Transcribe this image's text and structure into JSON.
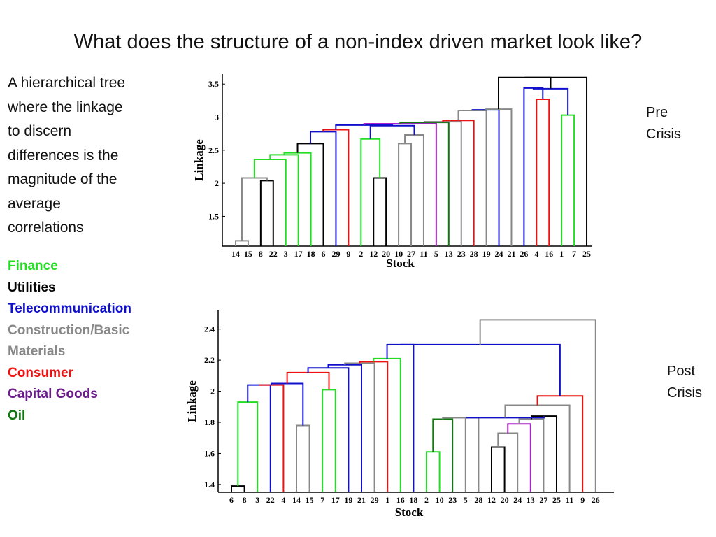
{
  "title": "What does the structure of a non-index driven market look like?",
  "description": [
    "A hierarchical tree",
    "where the linkage",
    "to discern",
    "differences is the",
    "magnitude of the",
    "average",
    "correlations"
  ],
  "legend": [
    {
      "label": "Finance",
      "color": "#22dd22"
    },
    {
      "label": "Utilities",
      "color": "#000000"
    },
    {
      "label": "Telecommunication",
      "color": "#1010cc"
    },
    {
      "label": "Construction/Basic",
      "color": "#888888"
    },
    {
      "label": "Materials",
      "color": "#888888"
    },
    {
      "label": "Consumer",
      "color": "#ee1111"
    },
    {
      "label": "Capital Goods",
      "color": "#6a1a8a"
    },
    {
      "label": "Oil",
      "color": "#117711"
    }
  ],
  "labels": {
    "pre": [
      "Pre",
      "Crisis"
    ],
    "post": [
      "Post",
      "Crisis"
    ]
  },
  "chart_data": [
    {
      "type": "dendrogram",
      "xlabel": "Stock",
      "ylabel": "Linkage",
      "ylim": [
        1.05,
        3.65
      ],
      "yticks": [
        "1.5",
        "2",
        "2.5",
        "3",
        "3.5"
      ],
      "leaves": [
        "14",
        "15",
        "8",
        "22",
        "3",
        "17",
        "18",
        "6",
        "29",
        "9",
        "2",
        "12",
        "20",
        "10",
        "27",
        "11",
        "5",
        "13",
        "23",
        "28",
        "19",
        "24",
        "21",
        "26",
        "4",
        "16",
        "1",
        "7",
        "25"
      ],
      "merges": [
        {
          "a": 0,
          "b": 1,
          "h": 1.13,
          "color": "#888888"
        },
        {
          "a": 2,
          "b": 3,
          "h": 2.04,
          "color": "#000000"
        },
        {
          "a": 29,
          "b": 30,
          "h": 2.08,
          "color": "#888888"
        },
        {
          "a": 4,
          "b": 31,
          "h": 2.36,
          "color": "#22dd22"
        },
        {
          "a": 5,
          "b": 32,
          "h": 2.43,
          "color": "#22dd22"
        },
        {
          "a": 6,
          "b": 33,
          "h": 2.46,
          "color": "#22dd22"
        },
        {
          "a": 7,
          "b": 34,
          "h": 2.6,
          "color": "#000000"
        },
        {
          "a": 8,
          "b": 35,
          "h": 2.78,
          "color": "#1010cc"
        },
        {
          "a": 36,
          "b": 9,
          "h": 2.81,
          "color": "#ee1111"
        },
        {
          "a": 11,
          "b": 12,
          "h": 2.08,
          "color": "#000000"
        },
        {
          "a": 10,
          "b": 38,
          "h": 2.67,
          "color": "#22dd22"
        },
        {
          "a": 13,
          "b": 14,
          "h": 2.6,
          "color": "#888888"
        },
        {
          "a": 40,
          "b": 15,
          "h": 2.73,
          "color": "#888888"
        },
        {
          "a": 39,
          "b": 41,
          "h": 2.87,
          "color": "#1010cc"
        },
        {
          "a": 37,
          "b": 42,
          "h": 2.88,
          "color": "#1010cc"
        },
        {
          "a": 43,
          "b": 16,
          "h": 2.9,
          "color": "#aa22cc"
        },
        {
          "a": 44,
          "b": 17,
          "h": 2.92,
          "color": "#117711"
        },
        {
          "a": 45,
          "b": 18,
          "h": 2.93,
          "color": "#888888"
        },
        {
          "a": 46,
          "b": 19,
          "h": 2.95,
          "color": "#ee1111"
        },
        {
          "a": 47,
          "b": 20,
          "h": 3.1,
          "color": "#888888"
        },
        {
          "a": 48,
          "b": 21,
          "h": 3.11,
          "color": "#1010cc"
        },
        {
          "a": 49,
          "b": 22,
          "h": 3.12,
          "color": "#888888"
        },
        {
          "a": 24,
          "b": 25,
          "h": 3.27,
          "color": "#ee1111"
        },
        {
          "a": 23,
          "b": 51,
          "h": 3.44,
          "color": "#1010cc"
        },
        {
          "a": 26,
          "b": 27,
          "h": 3.03,
          "color": "#22dd22"
        },
        {
          "a": 52,
          "b": 53,
          "h": 3.43,
          "color": "#1010cc"
        },
        {
          "a": 50,
          "b": 54,
          "h": 3.6,
          "color": "#000000"
        },
        {
          "a": 55,
          "b": 28,
          "h": 3.6,
          "color": "#000000"
        }
      ]
    },
    {
      "type": "dendrogram",
      "xlabel": "Stock",
      "ylabel": "Linkage",
      "ylim": [
        1.35,
        2.52
      ],
      "yticks": [
        "1.4",
        "1.6",
        "1.8",
        "2",
        "2.2",
        "2.4"
      ],
      "leaves": [
        "6",
        "8",
        "3",
        "22",
        "4",
        "14",
        "15",
        "7",
        "17",
        "19",
        "21",
        "29",
        "1",
        "16",
        "18",
        "2",
        "10",
        "23",
        "5",
        "28",
        "12",
        "20",
        "24",
        "13",
        "27",
        "25",
        "11",
        "9",
        "26"
      ],
      "merges": [
        {
          "a": 0,
          "b": 1,
          "h": 1.39,
          "color": "#000000"
        },
        {
          "a": 29,
          "b": 2,
          "h": 1.93,
          "color": "#22dd22"
        },
        {
          "a": 30,
          "b": 3,
          "h": 2.04,
          "color": "#1010cc"
        },
        {
          "a": 31,
          "b": 4,
          "h": 2.04,
          "color": "#ee1111"
        },
        {
          "a": 5,
          "b": 6,
          "h": 1.78,
          "color": "#888888"
        },
        {
          "a": 32,
          "b": 33,
          "h": 2.05,
          "color": "#1010cc"
        },
        {
          "a": 7,
          "b": 8,
          "h": 2.01,
          "color": "#22dd22"
        },
        {
          "a": 34,
          "b": 35,
          "h": 2.12,
          "color": "#ee1111"
        },
        {
          "a": 36,
          "b": 9,
          "h": 2.15,
          "color": "#1010cc"
        },
        {
          "a": 37,
          "b": 10,
          "h": 2.17,
          "color": "#1010cc"
        },
        {
          "a": 38,
          "b": 11,
          "h": 2.18,
          "color": "#888888"
        },
        {
          "a": 39,
          "b": 12,
          "h": 2.19,
          "color": "#ee1111"
        },
        {
          "a": 40,
          "b": 13,
          "h": 2.21,
          "color": "#22dd22"
        },
        {
          "a": 41,
          "b": 14,
          "h": 2.3,
          "color": "#1010cc"
        },
        {
          "a": 15,
          "b": 16,
          "h": 1.61,
          "color": "#22dd22"
        },
        {
          "a": 43,
          "b": 17,
          "h": 1.82,
          "color": "#117711"
        },
        {
          "a": 44,
          "b": 18,
          "h": 1.83,
          "color": "#888888"
        },
        {
          "a": 45,
          "b": 19,
          "h": 1.83,
          "color": "#888888"
        },
        {
          "a": 20,
          "b": 21,
          "h": 1.64,
          "color": "#000000"
        },
        {
          "a": 47,
          "b": 22,
          "h": 1.73,
          "color": "#888888"
        },
        {
          "a": 48,
          "b": 23,
          "h": 1.79,
          "color": "#aa22cc"
        },
        {
          "a": 49,
          "b": 24,
          "h": 1.82,
          "color": "#888888"
        },
        {
          "a": 50,
          "b": 25,
          "h": 1.84,
          "color": "#000000"
        },
        {
          "a": 46,
          "b": 51,
          "h": 1.83,
          "color": "#1010cc"
        },
        {
          "a": 52,
          "b": 26,
          "h": 1.91,
          "color": "#888888"
        },
        {
          "a": 53,
          "b": 27,
          "h": 1.97,
          "color": "#ee1111"
        },
        {
          "a": 42,
          "b": 54,
          "h": 2.3,
          "color": "#1010cc"
        },
        {
          "a": 55,
          "b": 28,
          "h": 2.46,
          "color": "#888888"
        }
      ]
    }
  ]
}
